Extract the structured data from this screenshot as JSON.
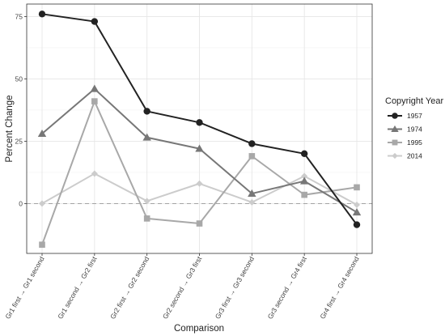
{
  "chart_data": {
    "type": "line",
    "title": "",
    "xlabel": "Comparison",
    "ylabel": "Percent Change",
    "categories": [
      "Gr1 first → Gr1 second",
      "Gr1 second → Gr2 first",
      "Gr2 first → Gr2 second",
      "Gr2 second → Gr3 first",
      "Gr3 first → Gr3 second",
      "Gr3 second → Gr4 first",
      "Gr4 first → Gr4 second"
    ],
    "yticks": [
      0,
      25,
      50,
      75
    ],
    "ytick_labels": [
      "0",
      "25",
      "50",
      "75"
    ],
    "ylim": [
      -20,
      80
    ],
    "grid": true,
    "reference_line": 0,
    "legend": {
      "title": "Copyright Year",
      "position": "right"
    },
    "series": [
      {
        "name": "1957",
        "marker": "circle",
        "color": "#222222",
        "values": [
          76,
          73,
          37,
          32.5,
          24,
          20,
          -8.5
        ]
      },
      {
        "name": "1974",
        "marker": "triangle",
        "color": "#777777",
        "values": [
          28,
          46,
          26.5,
          22,
          4,
          9,
          -3.5
        ]
      },
      {
        "name": "1995",
        "marker": "square",
        "color": "#a8a8a8",
        "values": [
          -16.5,
          41,
          -6,
          -8,
          19,
          3.5,
          6.5
        ]
      },
      {
        "name": "2014",
        "marker": "diamond",
        "color": "#cccccc",
        "values": [
          0,
          12,
          1,
          8,
          0.5,
          11,
          -0.5
        ]
      }
    ]
  }
}
